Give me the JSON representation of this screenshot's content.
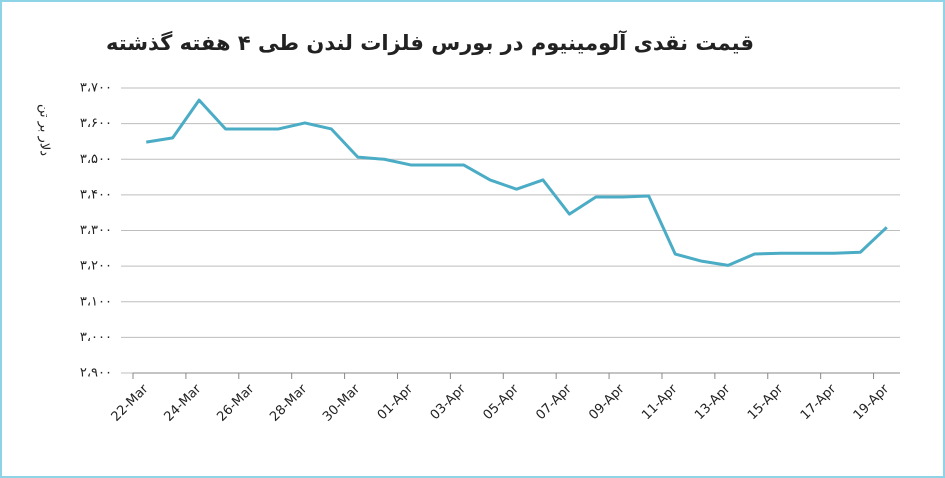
{
  "chart_data": {
    "type": "line",
    "title": "قیمت نقدی آلومینیوم در بورس فلزات لندن طی ۴ هفته گذشته",
    "y_label": "دلار بر تن",
    "categories": [
      "22-Mar",
      null,
      "24-Mar",
      null,
      "26-Mar",
      null,
      "28-Mar",
      null,
      "30-Mar",
      null,
      "01-Apr",
      null,
      "03-Apr",
      null,
      "05-Apr",
      null,
      "07-Apr",
      null,
      "09-Apr",
      null,
      "11-Apr",
      null,
      "13-Apr",
      null,
      "15-Apr",
      null,
      "17-Apr",
      null,
      "19-Apr"
    ],
    "values": [
      3548,
      3560,
      3666,
      3585,
      3585,
      3585,
      3602,
      3585,
      3506,
      3500,
      3484,
      3484,
      3484,
      3442,
      3416,
      3442,
      3346,
      3394,
      3394,
      3397,
      3234,
      3214,
      3202,
      3234,
      3236,
      3236,
      3236,
      3239,
      3309
    ],
    "color": "#4bacc6",
    "ylim": [
      2900,
      3700
    ],
    "yticks": [
      {
        "value": 2900,
        "label": "۲،۹۰۰"
      },
      {
        "value": 3000,
        "label": "۳،۰۰۰"
      },
      {
        "value": 3100,
        "label": "۳،۱۰۰"
      },
      {
        "value": 3200,
        "label": "۳،۲۰۰"
      },
      {
        "value": 3300,
        "label": "۳،۳۰۰"
      },
      {
        "value": 3400,
        "label": "۳،۴۰۰"
      },
      {
        "value": 3500,
        "label": "۳،۵۰۰"
      },
      {
        "value": 3600,
        "label": "۳،۶۰۰"
      },
      {
        "value": 3700,
        "label": "۳،۷۰۰"
      }
    ],
    "grid": true
  }
}
